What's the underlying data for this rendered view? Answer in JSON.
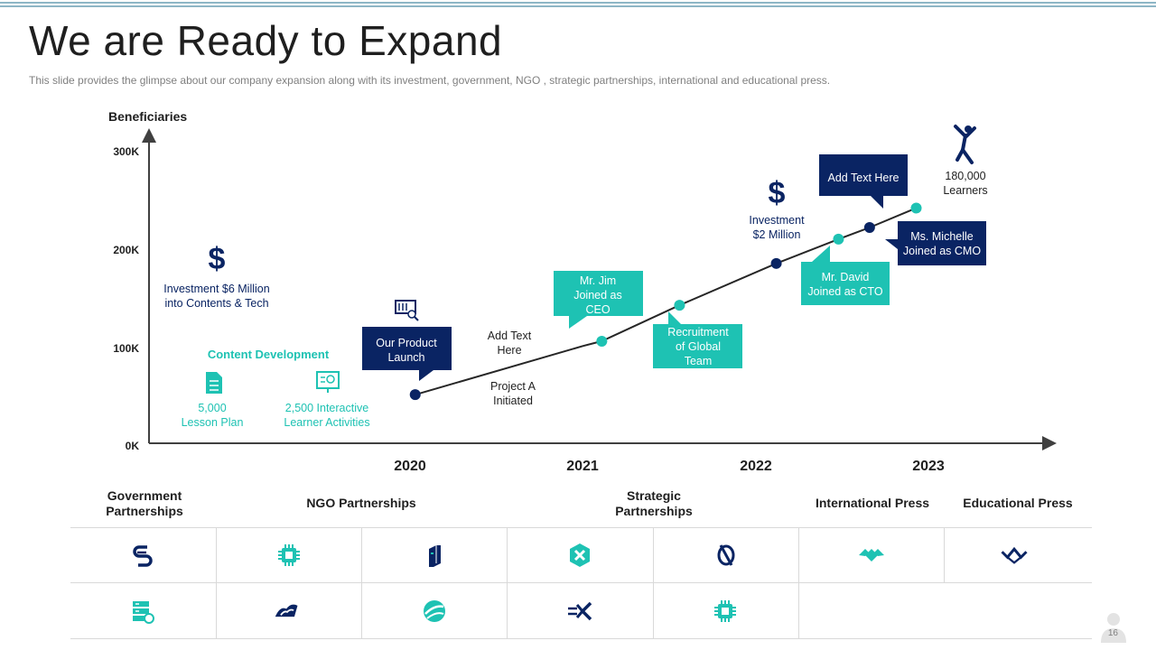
{
  "slide": {
    "title": "We are Ready to Expand",
    "subtitle": "This slide provides the glimpse about our company expansion along with its investment, government, NGO ,  strategic partnerships, international and educational press.",
    "page_number": "16"
  },
  "colors": {
    "navy": "#0a2463",
    "teal": "#1ec2b3",
    "axis": "#404040"
  },
  "chart_data": {
    "type": "line",
    "ylabel": "Beneficiaries",
    "ylim": [
      0,
      300000
    ],
    "y_ticks": [
      "0K",
      "100K",
      "200K",
      "300K"
    ],
    "x_ticks": [
      "2020",
      "2021",
      "2022",
      "2023"
    ],
    "series": [
      {
        "x": [
          2020.03,
          2021.0,
          2021.11,
          2021.56,
          2022.12,
          2022.48,
          2022.66,
          2022.93
        ],
        "values": [
          50000,
          100000,
          105000,
          142000,
          185000,
          210000,
          222000,
          242000
        ]
      }
    ],
    "points": [
      {
        "x": 2020.03,
        "y": 50000,
        "color": "navy"
      },
      {
        "x": 2021.11,
        "y": 105000,
        "color": "teal"
      },
      {
        "x": 2021.56,
        "y": 142000,
        "color": "teal"
      },
      {
        "x": 2022.12,
        "y": 185000,
        "color": "navy"
      },
      {
        "x": 2022.48,
        "y": 210000,
        "color": "teal"
      },
      {
        "x": 2022.66,
        "y": 222000,
        "color": "navy"
      },
      {
        "x": 2022.93,
        "y": 242000,
        "color": "teal"
      }
    ],
    "annotations": {
      "inv6_line1": "Investment $6 Million",
      "inv6_line2": "into Contents & Tech",
      "content_dev": "Content Development",
      "lesson_line1": "5,000",
      "lesson_line2": "Lesson Plan",
      "learner_line1": "2,500 Interactive",
      "learner_line2": "Learner Activities",
      "product_line1": "Our Product",
      "product_line2": "Launch",
      "addtext_line1": "Add Text",
      "addtext_line2": "Here",
      "projecta_line1": "Project A",
      "projecta_line2": "Initiated",
      "jim_line1": "Mr. Jim",
      "jim_line2": "Joined as",
      "jim_line3": "CEO",
      "recruit_line1": "Recruitment",
      "recruit_line2": "of Global",
      "recruit_line3": "Team",
      "inv2_line1": "Investment",
      "inv2_line2": "$2 Million",
      "david_line1": "Mr. David",
      "david_line2": "Joined as CTO",
      "addtext2": "Add Text Here",
      "michelle_line1": "Ms. Michelle",
      "michelle_line2": "Joined as CMO",
      "learners_line1": "180,000",
      "learners_line2": "Learners",
      "dollar": "$"
    }
  },
  "partners": {
    "headers": [
      {
        "line1": "Government",
        "line2": "Partnerships"
      },
      {
        "line1": "NGO Partnerships",
        "line2": ""
      },
      {
        "line1": "Strategic",
        "line2": "Partnerships"
      },
      {
        "line1": "International Press",
        "line2": ""
      },
      {
        "line1": "Educational Press",
        "line2": ""
      }
    ],
    "row1_icons": [
      "chain-s-logo-icon",
      "chip-logo-icon",
      "server-logo-icon",
      "hex-knot-logo-icon",
      "orbit-logo-icon",
      "diamond-logo-icon",
      "wave-arrow-logo-icon"
    ],
    "row2_icons": [
      "database-logo-icon",
      "crown-logo-icon",
      "globe-swirl-logo-icon",
      "arrow-x-logo-icon",
      "chip-logo-icon"
    ]
  }
}
